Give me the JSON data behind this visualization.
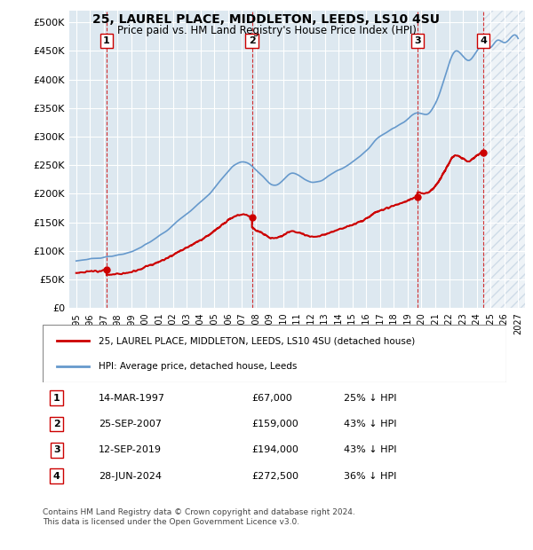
{
  "title1": "25, LAUREL PLACE, MIDDLETON, LEEDS, LS10 4SU",
  "title2": "Price paid vs. HM Land Registry's House Price Index (HPI)",
  "ylabel_ticks": [
    "£0",
    "£50K",
    "£100K",
    "£150K",
    "£200K",
    "£250K",
    "£300K",
    "£350K",
    "£400K",
    "£450K",
    "£500K"
  ],
  "ytick_values": [
    0,
    50000,
    100000,
    150000,
    200000,
    250000,
    300000,
    350000,
    400000,
    450000,
    500000
  ],
  "xlim_start": 1994.5,
  "xlim_end": 2027.5,
  "ylim_min": 0,
  "ylim_max": 520000,
  "sale_dates_decimal": [
    1997.2,
    2007.73,
    2019.7,
    2024.49
  ],
  "sale_prices": [
    67000,
    159000,
    194000,
    272500
  ],
  "sale_labels": [
    "1",
    "2",
    "3",
    "4"
  ],
  "sale_annotations": [
    {
      "label": "1",
      "date": "14-MAR-1997",
      "price": "£67,000",
      "pct": "25% ↓ HPI"
    },
    {
      "label": "2",
      "date": "25-SEP-2007",
      "price": "£159,000",
      "pct": "43% ↓ HPI"
    },
    {
      "label": "3",
      "date": "12-SEP-2019",
      "price": "£194,000",
      "pct": "43% ↓ HPI"
    },
    {
      "label": "4",
      "date": "28-JUN-2024",
      "price": "£272,500",
      "pct": "36% ↓ HPI"
    }
  ],
  "legend_line1": "25, LAUREL PLACE, MIDDLETON, LEEDS, LS10 4SU (detached house)",
  "legend_line2": "HPI: Average price, detached house, Leeds",
  "footer": "Contains HM Land Registry data © Crown copyright and database right 2024.\nThis data is licensed under the Open Government Licence v3.0.",
  "xtick_years": [
    1995,
    1996,
    1997,
    1998,
    1999,
    2000,
    2001,
    2002,
    2003,
    2004,
    2005,
    2006,
    2007,
    2008,
    2009,
    2010,
    2011,
    2012,
    2013,
    2014,
    2015,
    2016,
    2017,
    2018,
    2019,
    2020,
    2021,
    2022,
    2023,
    2024,
    2025,
    2026,
    2027
  ],
  "hatch_start": 2024.49,
  "hatch_end": 2027.5,
  "background_color": "#dde8f0",
  "hatch_color": "#c0d0e0",
  "red_line_color": "#cc0000",
  "blue_line_color": "#6699cc"
}
